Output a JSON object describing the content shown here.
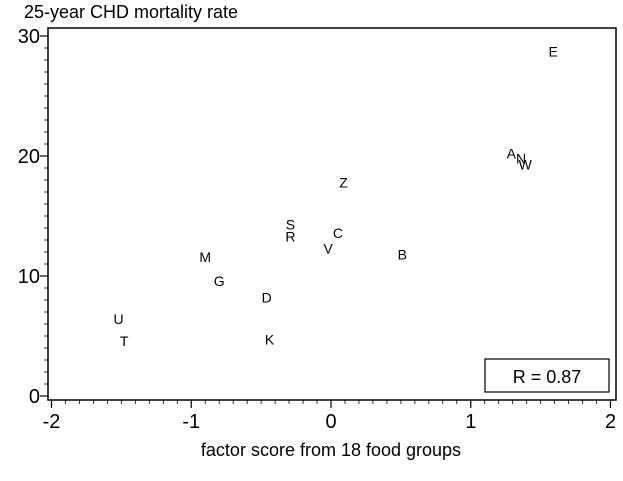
{
  "chart_data": {
    "type": "scatter",
    "title": "25-year CHD mortality rate",
    "xlabel": "factor score from 18 food groups",
    "ylabel": "",
    "xlim": [
      -2,
      2
    ],
    "ylim": [
      0,
      30
    ],
    "x_ticks": [
      {
        "value": -2,
        "label": "-2"
      },
      {
        "value": -1,
        "label": "-1"
      },
      {
        "value": 0,
        "label": "0"
      },
      {
        "value": 1,
        "label": "1"
      },
      {
        "value": 2,
        "label": "2"
      }
    ],
    "y_ticks": [
      {
        "value": 0,
        "label": "0"
      },
      {
        "value": 10,
        "label": "10"
      },
      {
        "value": 20,
        "label": "20"
      },
      {
        "value": 30,
        "label": "30"
      }
    ],
    "points": [
      {
        "label": "E",
        "x": 1.59,
        "y": 28.7
      },
      {
        "label": "A",
        "x": 1.29,
        "y": 20.2
      },
      {
        "label": "N",
        "x": 1.36,
        "y": 19.8
      },
      {
        "label": "W",
        "x": 1.39,
        "y": 19.3
      },
      {
        "label": "Z",
        "x": 0.09,
        "y": 17.8
      },
      {
        "label": "S",
        "x": -0.29,
        "y": 14.3
      },
      {
        "label": "R",
        "x": -0.29,
        "y": 13.3
      },
      {
        "label": "C",
        "x": 0.05,
        "y": 13.6
      },
      {
        "label": "V",
        "x": -0.02,
        "y": 12.3
      },
      {
        "label": "B",
        "x": 0.51,
        "y": 11.8
      },
      {
        "label": "M",
        "x": -0.9,
        "y": 11.6
      },
      {
        "label": "G",
        "x": -0.8,
        "y": 9.6
      },
      {
        "label": "D",
        "x": -0.46,
        "y": 8.2
      },
      {
        "label": "U",
        "x": -1.52,
        "y": 6.4
      },
      {
        "label": "T",
        "x": -1.48,
        "y": 4.6
      },
      {
        "label": "K",
        "x": -0.44,
        "y": 4.7
      }
    ],
    "annotation": "R = 0.87",
    "grid": false
  }
}
